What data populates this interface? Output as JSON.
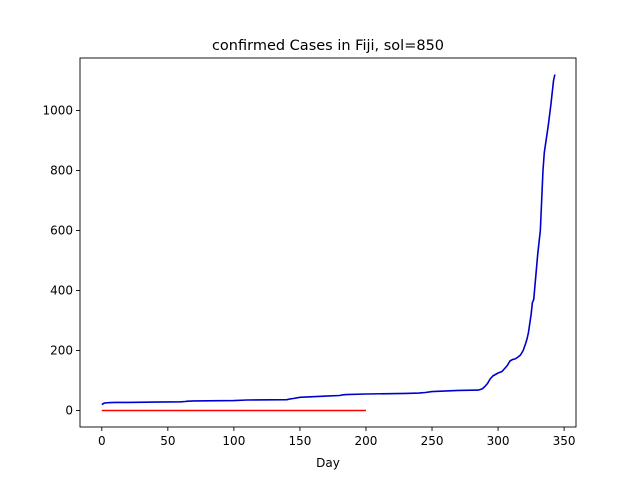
{
  "chart_data": {
    "type": "line",
    "title": "confirmed Cases in Fiji, sol=850",
    "xlabel": "Day",
    "ylabel": "",
    "xlim": [
      -16.5,
      359
    ],
    "ylim": [
      -55,
      1175
    ],
    "xticks": [
      0,
      50,
      100,
      150,
      200,
      250,
      300,
      350
    ],
    "yticks": [
      0,
      200,
      400,
      600,
      800,
      1000
    ],
    "grid": false,
    "legend": "none",
    "series": [
      {
        "color": "#0000cc",
        "x": [
          0,
          2,
          5,
          10,
          20,
          40,
          60,
          63,
          65,
          70,
          100,
          110,
          140,
          142,
          145,
          150,
          160,
          170,
          180,
          182,
          185,
          200,
          230,
          240,
          245,
          250,
          270,
          285,
          288,
          290,
          292,
          294,
          296,
          298,
          300,
          303,
          305,
          307,
          309,
          311,
          313,
          315,
          317,
          319,
          321,
          322,
          323,
          324,
          325,
          326,
          327,
          328,
          329,
          330,
          331,
          332,
          333,
          334,
          335,
          336,
          337,
          338,
          339,
          340,
          341,
          342,
          343
        ],
        "y": [
          20,
          25,
          26,
          27,
          27,
          28,
          29,
          30,
          31,
          32,
          33,
          35,
          36,
          38,
          40,
          44,
          46,
          48,
          50,
          52,
          53,
          55,
          57,
          58,
          60,
          63,
          67,
          68,
          72,
          80,
          90,
          105,
          115,
          120,
          125,
          130,
          140,
          150,
          165,
          170,
          172,
          178,
          185,
          200,
          225,
          240,
          260,
          290,
          320,
          360,
          370,
          420,
          470,
          520,
          560,
          600,
          700,
          800,
          860,
          890,
          920,
          950,
          985,
          1020,
          1060,
          1100,
          1120
        ]
      },
      {
        "color": "#ff0000",
        "x": [
          0,
          200
        ],
        "y": [
          0,
          0
        ]
      }
    ]
  }
}
